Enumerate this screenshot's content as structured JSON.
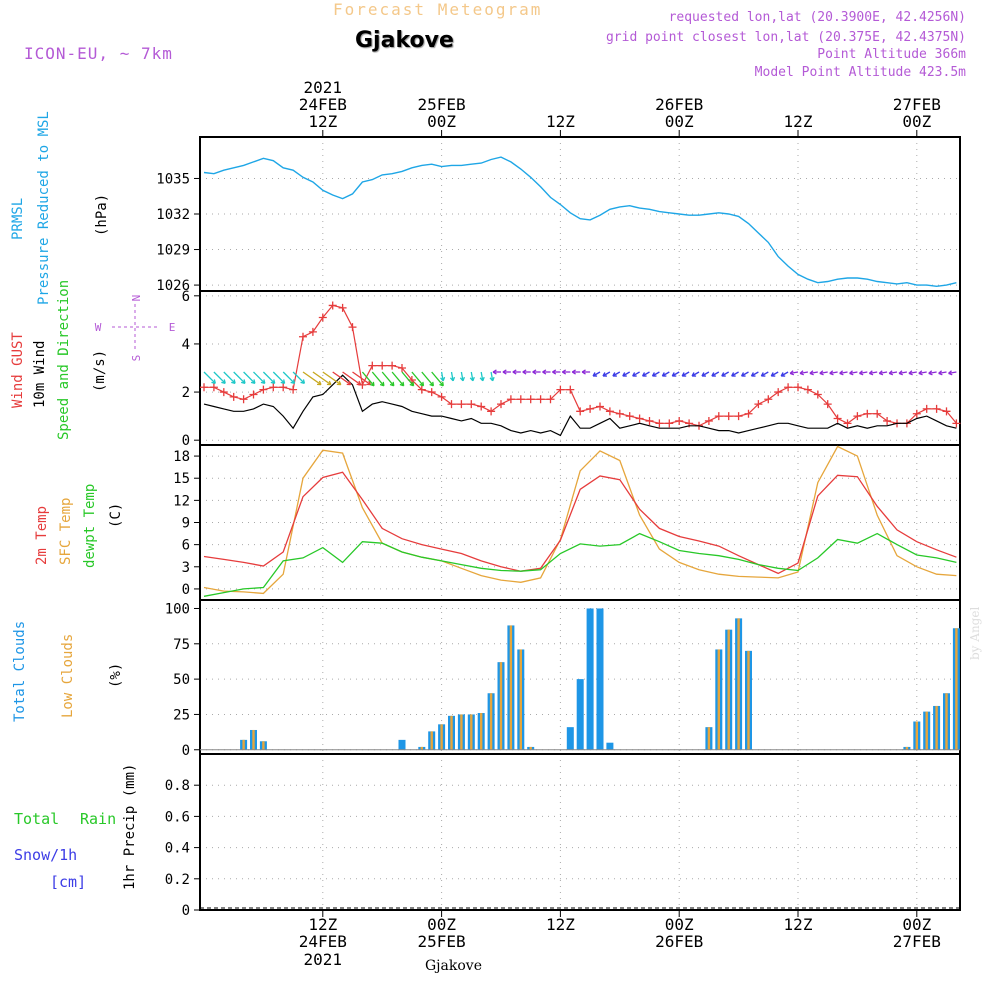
{
  "header": {
    "title": "Forecast Meteogram",
    "location": "Gjakove",
    "model": "ICON-EU, ~ 7km",
    "requested": "requested lon,lat (20.3900E, 42.4256N)",
    "grid_point": "grid point closest lon,lat (20.375E, 42.4375N)",
    "point_altitude": "Point Altitude 366m",
    "model_altitude": "Model Point Altitude 423.5m"
  },
  "footer": {
    "location": "Gjakove",
    "watermark": "by Angel"
  },
  "time_axis": {
    "top_year": "2021",
    "labels": [
      {
        "h": 12,
        "l1": "24FEB",
        "l2": "12Z",
        "year": "2021"
      },
      {
        "h": 24,
        "l1": "25FEB",
        "l2": "00Z"
      },
      {
        "h": 36,
        "l1": "",
        "l2": "12Z"
      },
      {
        "h": 48,
        "l1": "26FEB",
        "l2": "00Z"
      },
      {
        "h": 60,
        "l1": "",
        "l2": "12Z"
      },
      {
        "h": 72,
        "l1": "27FEB",
        "l2": "00Z"
      }
    ]
  },
  "colors": {
    "pressure": "#1ea6e6",
    "gust": "#e63c3c",
    "wind": "#000000",
    "temp": "#e63c3c",
    "sfc": "#e6a63c",
    "dew": "#28c828",
    "total_cloud": "#1e96e6",
    "low_cloud": "#e6a63c",
    "rain": "#28c828",
    "snow": "#3c3ce6",
    "dir": "#b45ad6"
  },
  "chart_data": [
    {
      "type": "line",
      "ylabel": "PRMSL Pressure Reduced to MSL",
      "unit": "(hPa)",
      "ylim": [
        1025.5,
        1038.5
      ],
      "yticks": [
        1026,
        1029,
        1032,
        1035
      ],
      "grid": true,
      "x_hours": [
        0,
        1,
        2,
        3,
        4,
        5,
        6,
        7,
        8,
        9,
        10,
        11,
        12,
        13,
        14,
        15,
        16,
        17,
        18,
        19,
        20,
        21,
        22,
        23,
        24,
        25,
        26,
        27,
        28,
        29,
        30,
        31,
        32,
        33,
        34,
        35,
        36,
        37,
        38,
        39,
        40,
        41,
        42,
        43,
        44,
        45,
        46,
        47,
        48,
        49,
        50,
        51,
        52,
        53,
        54,
        55,
        56,
        57,
        58,
        59,
        60,
        61,
        62,
        63,
        64,
        65,
        66,
        67,
        68,
        69,
        70,
        71,
        72,
        73,
        74,
        75,
        76
      ],
      "series": [
        {
          "values": [
            1035.5,
            1035.4,
            1035.7,
            1035.9,
            1036.1,
            1036.4,
            1036.7,
            1036.5,
            1035.9,
            1035.7,
            1035.1,
            1034.7,
            1034.0,
            1033.6,
            1033.3,
            1033.7,
            1034.7,
            1034.9,
            1035.3,
            1035.4,
            1035.6,
            1035.9,
            1036.1,
            1036.2,
            1036.0,
            1036.1,
            1036.1,
            1036.2,
            1036.3,
            1036.6,
            1036.8,
            1036.4,
            1035.8,
            1035.1,
            1034.3,
            1033.4,
            1032.8,
            1032.1,
            1031.6,
            1031.5,
            1031.9,
            1032.4,
            1032.6,
            1032.7,
            1032.5,
            1032.4,
            1032.2,
            1032.1,
            1032.0,
            1031.9,
            1031.9,
            1032.0,
            1032.1,
            1032.0,
            1031.8,
            1031.2,
            1030.4,
            1029.6,
            1028.4,
            1027.6,
            1026.9,
            1026.5,
            1026.2,
            1026.3,
            1026.5,
            1026.6,
            1026.6,
            1026.5,
            1026.3,
            1026.2,
            1026.1,
            1026.2,
            1026.0,
            1026.0,
            1025.9,
            1026.0,
            1026.2
          ]
        }
      ]
    },
    {
      "type": "line",
      "ylabel_gust": "Wind GUST",
      "ylabel_wind": "10m Wind",
      "ylabel_dir": "Speed and Direction",
      "unit": "(m/s)",
      "compass": {
        "n": "N",
        "s": "S",
        "w": "W",
        "e": "E"
      },
      "ylim": [
        -0.2,
        6.2
      ],
      "yticks": [
        0,
        2,
        4,
        6
      ],
      "grid": true,
      "x_hours": [
        0,
        1,
        2,
        3,
        4,
        5,
        6,
        7,
        8,
        9,
        10,
        11,
        12,
        13,
        14,
        15,
        16,
        17,
        18,
        19,
        20,
        21,
        22,
        23,
        24,
        25,
        26,
        27,
        28,
        29,
        30,
        31,
        32,
        33,
        34,
        35,
        36,
        37,
        38,
        39,
        40,
        41,
        42,
        43,
        44,
        45,
        46,
        47,
        48,
        49,
        50,
        51,
        52,
        53,
        54,
        55,
        56,
        57,
        58,
        59,
        60,
        61,
        62,
        63,
        64,
        65,
        66,
        67,
        68,
        69,
        70,
        71,
        72,
        73,
        74,
        75,
        76
      ],
      "series": [
        {
          "name": "Wind GUST",
          "values": [
            2.2,
            2.2,
            2.0,
            1.8,
            1.7,
            1.9,
            2.1,
            2.2,
            2.2,
            2.1,
            4.3,
            4.5,
            5.1,
            5.6,
            5.5,
            4.7,
            2.3,
            3.1,
            3.1,
            3.1,
            3.0,
            2.5,
            2.1,
            2.0,
            1.8,
            1.5,
            1.5,
            1.5,
            1.4,
            1.2,
            1.5,
            1.7,
            1.7,
            1.7,
            1.7,
            1.7,
            2.1,
            2.1,
            1.2,
            1.3,
            1.4,
            1.2,
            1.1,
            1.0,
            0.9,
            0.8,
            0.7,
            0.7,
            0.8,
            0.7,
            0.6,
            0.8,
            1.0,
            1.0,
            1.0,
            1.1,
            1.5,
            1.7,
            2.0,
            2.2,
            2.2,
            2.1,
            1.9,
            1.5,
            0.9,
            0.7,
            1.0,
            1.1,
            1.1,
            0.8,
            0.7,
            0.7,
            1.1,
            1.3,
            1.3,
            1.2,
            0.7
          ]
        },
        {
          "name": "10m Wind",
          "values": [
            1.5,
            1.4,
            1.3,
            1.2,
            1.2,
            1.3,
            1.5,
            1.4,
            1.0,
            0.5,
            1.2,
            1.8,
            1.9,
            2.3,
            2.7,
            2.3,
            1.2,
            1.5,
            1.6,
            1.5,
            1.4,
            1.2,
            1.1,
            1.0,
            1.0,
            0.9,
            0.8,
            0.9,
            0.7,
            0.7,
            0.6,
            0.4,
            0.3,
            0.4,
            0.3,
            0.4,
            0.2,
            1.0,
            0.5,
            0.5,
            0.7,
            0.9,
            0.5,
            0.6,
            0.7,
            0.6,
            0.5,
            0.5,
            0.5,
            0.6,
            0.6,
            0.5,
            0.4,
            0.4,
            0.3,
            0.4,
            0.5,
            0.6,
            0.7,
            0.7,
            0.6,
            0.5,
            0.5,
            0.5,
            0.7,
            0.5,
            0.6,
            0.5,
            0.6,
            0.6,
            0.7,
            0.7,
            0.9,
            1.0,
            0.8,
            0.6,
            0.5
          ]
        }
      ]
    },
    {
      "type": "line",
      "ylabel_t2m": "2m Temp",
      "ylabel_sfc": "SFC Temp",
      "ylabel_dew": "dewpt Temp",
      "unit": "(C)",
      "ylim": [
        -1.5,
        19.5
      ],
      "yticks": [
        0,
        3,
        6,
        9,
        12,
        15,
        18
      ],
      "grid": true,
      "x_hours": [
        0,
        2,
        4,
        6,
        8,
        10,
        12,
        14,
        16,
        18,
        20,
        22,
        24,
        26,
        28,
        30,
        32,
        34,
        36,
        38,
        40,
        42,
        44,
        46,
        48,
        50,
        52,
        54,
        56,
        58,
        60,
        62,
        64,
        66,
        68,
        70,
        72,
        74,
        76
      ],
      "series": [
        {
          "name": "2m Temp",
          "values": [
            4.4,
            4.0,
            3.6,
            3.1,
            5.0,
            12.5,
            15.1,
            15.8,
            12.1,
            8.2,
            6.8,
            6.0,
            5.4,
            4.8,
            3.8,
            3.0,
            2.4,
            2.8,
            6.6,
            13.5,
            15.3,
            14.8,
            10.8,
            8.2,
            7.1,
            6.5,
            5.8,
            4.5,
            3.3,
            2.1,
            3.5,
            12.6,
            15.4,
            15.2,
            11.2,
            8.0,
            6.4,
            5.3,
            4.3
          ]
        },
        {
          "name": "SFC Temp",
          "values": [
            0.2,
            -0.3,
            -0.4,
            -0.6,
            2.0,
            15.0,
            18.8,
            18.4,
            11.0,
            6.2,
            5.0,
            4.3,
            3.8,
            2.8,
            1.8,
            1.2,
            0.9,
            1.5,
            6.7,
            16.0,
            18.7,
            17.4,
            10.0,
            5.4,
            3.6,
            2.6,
            2.0,
            1.7,
            1.6,
            1.5,
            2.3,
            14.4,
            19.3,
            18.0,
            10.0,
            4.5,
            3.0,
            2.0,
            1.8
          ]
        },
        {
          "name": "dewpt Temp",
          "values": [
            -1.0,
            -0.5,
            0.0,
            0.2,
            3.8,
            4.2,
            5.6,
            3.6,
            6.4,
            6.2,
            5.0,
            4.3,
            3.8,
            3.3,
            2.8,
            2.5,
            2.4,
            2.6,
            4.8,
            6.1,
            5.8,
            6.0,
            7.5,
            6.4,
            5.2,
            4.8,
            4.5,
            4.0,
            3.3,
            2.8,
            2.5,
            4.2,
            6.7,
            6.2,
            7.5,
            6.0,
            4.6,
            4.2,
            3.6
          ]
        }
      ]
    },
    {
      "type": "bar",
      "ylabel_total": "Total Clouds",
      "ylabel_low": "Low Clouds",
      "unit": "(%)",
      "ylim": [
        -3,
        106
      ],
      "yticks": [
        0,
        25,
        50,
        75,
        100
      ],
      "grid": true,
      "x_hours": [
        0,
        1,
        2,
        3,
        4,
        5,
        6,
        7,
        8,
        9,
        10,
        11,
        12,
        13,
        14,
        15,
        16,
        17,
        18,
        19,
        20,
        21,
        22,
        23,
        24,
        25,
        26,
        27,
        28,
        29,
        30,
        31,
        32,
        33,
        34,
        35,
        36,
        37,
        38,
        39,
        40,
        41,
        42,
        43,
        44,
        45,
        46,
        47,
        48,
        49,
        50,
        51,
        52,
        53,
        54,
        55,
        56,
        57,
        58,
        59,
        60,
        61,
        62,
        63,
        64,
        65,
        66,
        67,
        68,
        69,
        70,
        71,
        72,
        73,
        74,
        75,
        76
      ],
      "series": [
        {
          "name": "Total Clouds",
          "values": [
            0,
            0,
            0,
            0,
            7,
            14,
            6,
            0,
            0,
            0,
            0,
            0,
            0,
            0,
            0,
            0,
            0,
            0,
            0,
            0,
            7,
            0,
            2,
            13,
            18,
            24,
            25,
            25,
            26,
            40,
            62,
            88,
            71,
            2,
            0,
            0,
            0,
            16,
            50,
            100,
            100,
            5,
            0,
            0,
            0,
            0,
            0,
            0,
            0,
            0,
            0,
            16,
            71,
            85,
            93,
            70,
            0,
            0,
            0,
            0,
            0,
            0,
            0,
            0,
            0,
            0,
            0,
            0,
            0,
            0,
            0,
            2,
            20,
            27,
            31,
            40,
            86
          ]
        },
        {
          "name": "Low Clouds",
          "values": [
            0,
            0,
            0,
            0,
            7,
            14,
            6,
            0,
            0,
            0,
            0,
            0,
            0,
            0,
            0,
            0,
            0,
            0,
            0,
            0,
            0,
            0,
            2,
            13,
            18,
            24,
            25,
            25,
            26,
            40,
            62,
            88,
            71,
            2,
            0,
            0,
            0,
            0,
            0,
            0,
            0,
            0,
            0,
            0,
            0,
            0,
            0,
            0,
            0,
            0,
            0,
            16,
            71,
            85,
            93,
            70,
            0,
            0,
            0,
            0,
            0,
            0,
            0,
            0,
            0,
            0,
            0,
            0,
            0,
            0,
            0,
            2,
            20,
            27,
            31,
            40,
            86
          ]
        }
      ]
    },
    {
      "type": "bar",
      "legend_rain": "Total Rain",
      "legend_snow": "Snow/1h",
      "legend_snow_unit": "[cm]",
      "ylabel": "1hr Precip (mm)",
      "ylim": [
        0,
        1
      ],
      "yticks": [
        "0",
        "0.2",
        "0.4",
        "0.6",
        "0.8"
      ],
      "grid": true,
      "x_hours": [],
      "series": [
        {
          "name": "Total Rain",
          "values": []
        },
        {
          "name": "Snow/1h",
          "values": []
        }
      ]
    }
  ]
}
